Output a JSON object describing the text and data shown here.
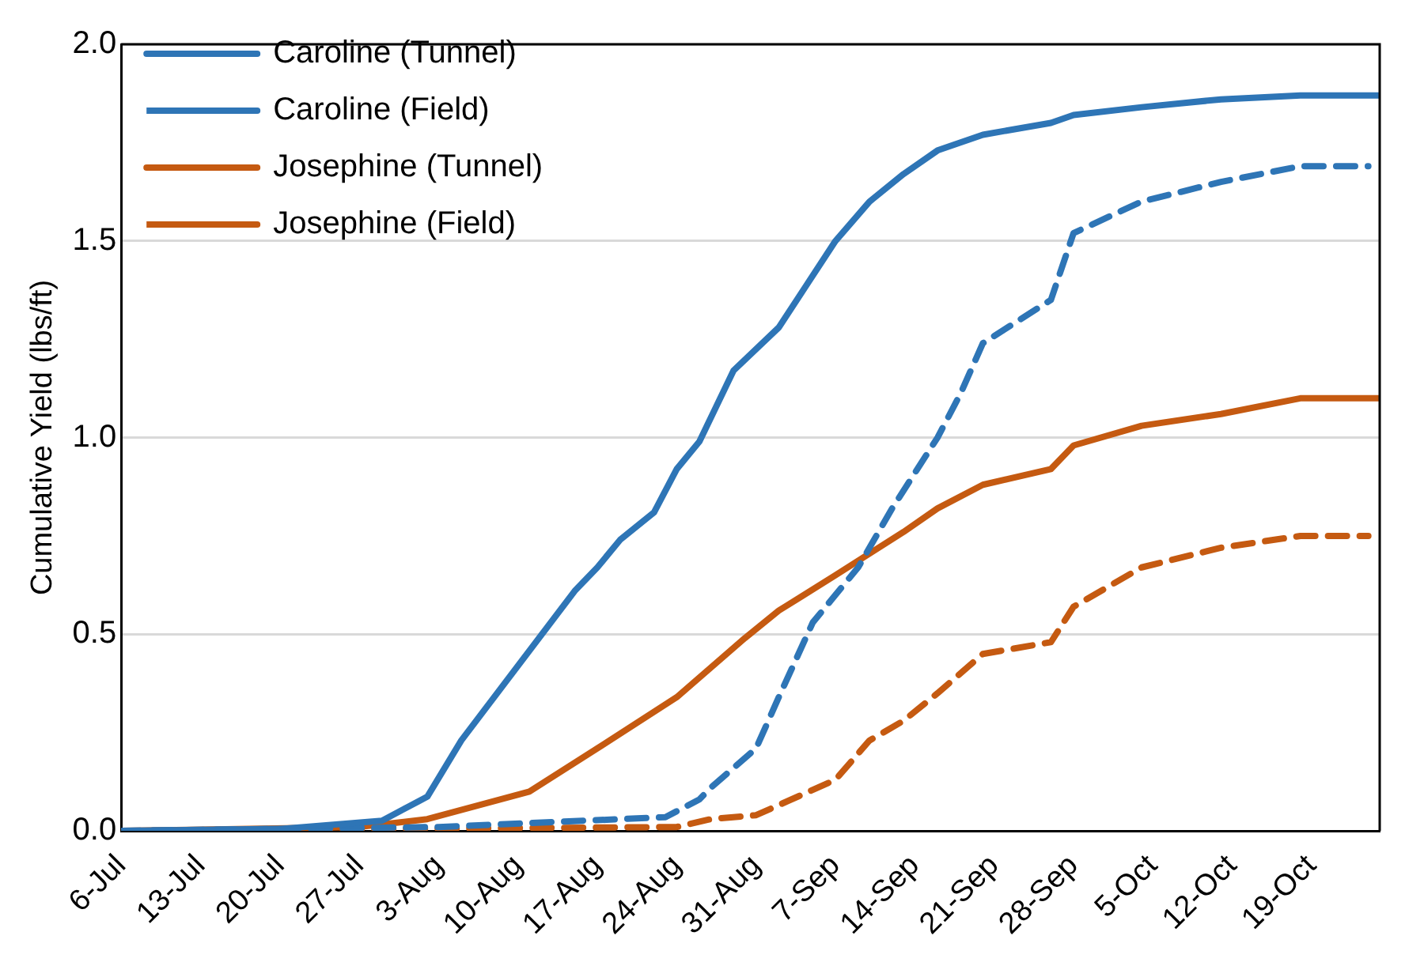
{
  "chart_data": {
    "type": "line",
    "ylabel": "Cumulative Yield (lbs/ft)",
    "xlim": [
      "--07-06",
      "--10-25"
    ],
    "xticks": [
      {
        "value": "--07-06",
        "label": "6-Jul"
      },
      {
        "value": "--07-13",
        "label": "13-Jul"
      },
      {
        "value": "--07-20",
        "label": "20-Jul"
      },
      {
        "value": "--07-27",
        "label": "27-Jul"
      },
      {
        "value": "--08-03",
        "label": "3-Aug"
      },
      {
        "value": "--08-10",
        "label": "10-Aug"
      },
      {
        "value": "--08-17",
        "label": "17-Aug"
      },
      {
        "value": "--08-24",
        "label": "24-Aug"
      },
      {
        "value": "--08-31",
        "label": "31-Aug"
      },
      {
        "value": "--09-07",
        "label": "7-Sep"
      },
      {
        "value": "--09-14",
        "label": "14-Sep"
      },
      {
        "value": "--09-21",
        "label": "21-Sep"
      },
      {
        "value": "--09-28",
        "label": "28-Sep"
      },
      {
        "value": "--10-05",
        "label": "5-Oct"
      },
      {
        "value": "--10-12",
        "label": "12-Oct"
      },
      {
        "value": "--10-19",
        "label": "19-Oct"
      }
    ],
    "ylim": [
      0,
      2
    ],
    "yticks": [
      {
        "value": 0,
        "label": "0.0"
      },
      {
        "value": 0.5,
        "label": "0.5"
      },
      {
        "value": 1,
        "label": "1.0"
      },
      {
        "value": 1.5,
        "label": "1.5"
      },
      {
        "value": 2,
        "label": "2.0"
      }
    ],
    "grid": "y",
    "legend": "top left",
    "marker": "none",
    "series": [
      {
        "name": "Caroline (Tunnel)",
        "color": "#2e75b6",
        "line_style": "solid",
        "x": [
          "--07-06",
          "--07-20",
          "--07-29",
          "--08-02",
          "--08-05",
          "--08-15",
          "--08-17",
          "--08-19",
          "--08-22",
          "--08-24",
          "--08-26",
          "--08-29",
          "--09-02",
          "--09-07",
          "--09-10",
          "--09-13",
          "--09-16",
          "--09-20",
          "--09-26",
          "--09-28",
          "--10-04",
          "--10-11",
          "--10-18",
          "--10-25"
        ],
        "values": [
          0,
          0.005,
          0.026,
          0.087,
          0.23,
          0.61,
          0.67,
          0.74,
          0.81,
          0.92,
          0.99,
          1.17,
          1.28,
          1.5,
          1.6,
          1.67,
          1.73,
          1.77,
          1.8,
          1.82,
          1.84,
          1.86,
          1.87,
          1.87
        ]
      },
      {
        "name": "Caroline (Field)",
        "color": "#2e75b6",
        "line_style": "dashed",
        "x": [
          "--07-06",
          "--08-03",
          "--08-23",
          "--08-26",
          "--08-27",
          "--08-31",
          "--09-02",
          "--09-05",
          "--09-09",
          "--09-12",
          "--09-16",
          "--09-18",
          "--09-20",
          "--09-26",
          "--09-28",
          "--10-04",
          "--10-11",
          "--10-18",
          "--10-24"
        ],
        "values": [
          0,
          0.01,
          0.035,
          0.08,
          0.11,
          0.21,
          0.34,
          0.53,
          0.67,
          0.82,
          1.0,
          1.11,
          1.24,
          1.35,
          1.52,
          1.6,
          1.65,
          1.69,
          1.69
        ]
      },
      {
        "name": "Josephine (Tunnel)",
        "color": "#c55a11",
        "line_style": "solid",
        "x": [
          "--07-06",
          "--07-27",
          "--08-02",
          "--08-11",
          "--08-17",
          "--08-24",
          "--08-30",
          "--09-02",
          "--09-07",
          "--09-13",
          "--09-16",
          "--09-20",
          "--09-26",
          "--09-28",
          "--10-04",
          "--10-11",
          "--10-18",
          "--10-25"
        ],
        "values": [
          0,
          0.01,
          0.03,
          0.1,
          0.21,
          0.34,
          0.49,
          0.56,
          0.65,
          0.76,
          0.82,
          0.88,
          0.92,
          0.98,
          1.03,
          1.06,
          1.1,
          1.1
        ]
      },
      {
        "name": "Josephine (Field)",
        "color": "#c55a11",
        "line_style": "dashed",
        "x": [
          "--07-06",
          "--08-24",
          "--08-27",
          "--08-31",
          "--09-07",
          "--09-10",
          "--09-13",
          "--09-16",
          "--09-20",
          "--09-26",
          "--09-28",
          "--10-04",
          "--10-11",
          "--10-18",
          "--10-24"
        ],
        "values": [
          0,
          0.01,
          0.03,
          0.04,
          0.13,
          0.23,
          0.28,
          0.35,
          0.45,
          0.48,
          0.57,
          0.67,
          0.72,
          0.75,
          0.75
        ]
      }
    ]
  }
}
